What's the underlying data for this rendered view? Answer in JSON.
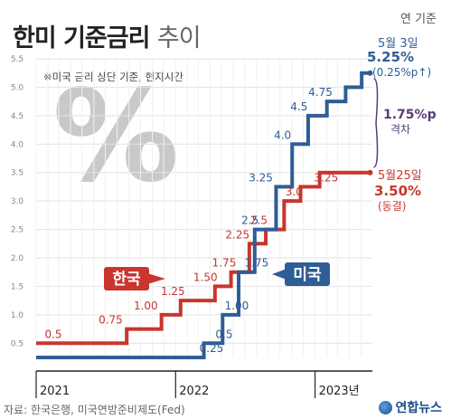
{
  "header": {
    "title": "한미 기준금리",
    "title_sub": "추이",
    "unit": "연 기준",
    "note": "※미국 금리 상단 기준, 현지시간",
    "background_mark": "%"
  },
  "footer": {
    "source": "자료: 한국은행, 미국연방준비제도(Fed)",
    "logo": "연합뉴스"
  },
  "chart_data": {
    "type": "line",
    "step": true,
    "y_ticks": [
      "0.5",
      "1.0",
      "1.5",
      "2.0",
      "2.5",
      "3.0",
      "3.5",
      "4.0",
      "4.5",
      "5.0",
      "5.5"
    ],
    "ylim": [
      0.25,
      5.5
    ],
    "x_ticks": [
      "2021",
      "2022",
      "2023년"
    ],
    "xlim": [
      "2021-01-01",
      "2023-05-31"
    ],
    "grid": true,
    "series": [
      {
        "name": "한국",
        "color": "#c8362e",
        "points": [
          {
            "x": "2020-11-01",
            "y": 0.5
          },
          {
            "x": "2021-08-26",
            "y": 0.75
          },
          {
            "x": "2021-11-25",
            "y": 1.0
          },
          {
            "x": "2022-01-14",
            "y": 1.25
          },
          {
            "x": "2022-04-14",
            "y": 1.5
          },
          {
            "x": "2022-05-26",
            "y": 1.75
          },
          {
            "x": "2022-07-13",
            "y": 2.25
          },
          {
            "x": "2022-08-25",
            "y": 2.5
          },
          {
            "x": "2022-10-12",
            "y": 3.0
          },
          {
            "x": "2022-11-24",
            "y": 3.25
          },
          {
            "x": "2023-01-13",
            "y": 3.5
          },
          {
            "x": "2023-05-25",
            "y": 3.5
          }
        ],
        "labels": [
          {
            "text": "0.5",
            "x": "2021-02-15",
            "y": 0.5
          },
          {
            "text": "0.75",
            "x": "2021-07-15",
            "y": 0.75
          },
          {
            "text": "1.00",
            "x": "2021-10-15",
            "y": 1.0
          },
          {
            "text": "1.25",
            "x": "2021-12-25",
            "y": 1.25
          },
          {
            "text": "1.50",
            "x": "2022-03-20",
            "y": 1.5
          },
          {
            "text": "1.75",
            "x": "2022-05-08",
            "y": 1.75
          },
          {
            "text": "2.25",
            "x": "2022-06-12",
            "y": 2.25
          },
          {
            "text": "2.5",
            "x": "2022-08-07",
            "y": 2.5
          },
          {
            "text": "3.0",
            "x": "2022-11-07",
            "y": 3.0
          },
          {
            "text": "3.25",
            "x": "2023-01-30",
            "y": 3.25
          }
        ]
      },
      {
        "name": "미국",
        "color": "#2f5d95",
        "points": [
          {
            "x": "2020-11-01",
            "y": 0.25
          },
          {
            "x": "2022-03-16",
            "y": 0.5
          },
          {
            "x": "2022-05-04",
            "y": 1.0
          },
          {
            "x": "2022-06-15",
            "y": 1.75
          },
          {
            "x": "2022-07-27",
            "y": 2.5
          },
          {
            "x": "2022-09-21",
            "y": 3.25
          },
          {
            "x": "2022-11-02",
            "y": 4.0
          },
          {
            "x": "2022-12-14",
            "y": 4.5
          },
          {
            "x": "2023-02-01",
            "y": 4.75
          },
          {
            "x": "2023-03-22",
            "y": 5.0
          },
          {
            "x": "2023-05-03",
            "y": 5.25
          },
          {
            "x": "2023-05-25",
            "y": 5.25
          }
        ],
        "labels": [
          {
            "text": "0.25",
            "x": "2022-04-05",
            "y": 0.25
          },
          {
            "text": "0.5",
            "x": "2022-05-08",
            "y": 0.5
          },
          {
            "text": "1.00",
            "x": "2022-06-10",
            "y": 1.0
          },
          {
            "text": "1.75",
            "x": "2022-08-01",
            "y": 1.75
          },
          {
            "text": "2.5",
            "x": "2022-07-15",
            "y": 2.5
          },
          {
            "text": "3.25",
            "x": "2022-08-12",
            "y": 3.25
          },
          {
            "text": "4.0",
            "x": "2022-10-08",
            "y": 4.0
          },
          {
            "text": "4.5",
            "x": "2022-11-20",
            "y": 4.5
          },
          {
            "text": "4.75",
            "x": "2023-01-15",
            "y": 4.75
          }
        ]
      }
    ],
    "callouts": {
      "us": {
        "date": "5월 3일",
        "rate": "5.25%",
        "change": "(0.25%p↑)"
      },
      "gap": {
        "value": "1.75%p",
        "label": "격차"
      },
      "kr": {
        "date": "5월25일",
        "rate": "3.50%",
        "change": "(동결)"
      }
    },
    "gap_color": "#5a3a78"
  }
}
